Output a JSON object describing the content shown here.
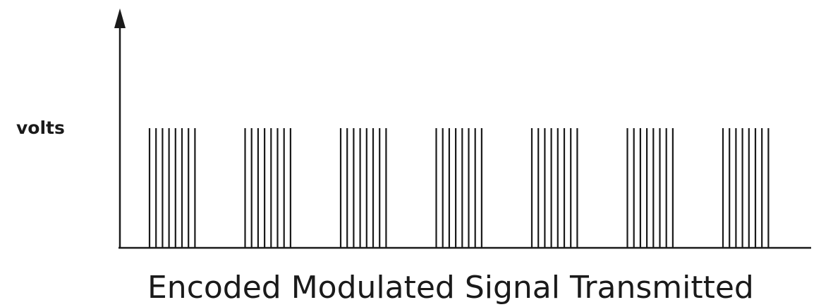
{
  "diagram": {
    "y_axis_label": "volts",
    "caption": "Encoded Modulated Signal Transmitted",
    "pulse_groups": 7,
    "pulses_per_group": 8
  },
  "colors": {
    "line": "#1a1a1a",
    "background": "#ffffff"
  }
}
